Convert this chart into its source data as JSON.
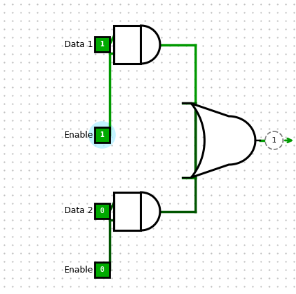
{
  "bg_color": "#ffffff",
  "dot_color": "#bbbbbb",
  "wire_color_top": "#009900",
  "wire_color_bot": "#005500",
  "gate_edge": "#000000",
  "gate_fill": "#ffffff",
  "label_color": "#000000",
  "box_fill": "#00aa00",
  "box_edge": "#000000",
  "text_color_white": "#ffffff",
  "highlight_color": "#aaeeff",
  "labels": {
    "data1": "Data 1",
    "enable1": "Enable",
    "data2": "Data 2",
    "enable2": "Enable"
  },
  "values": {
    "data1": "1",
    "enable1": "1",
    "data2": "0",
    "enable2": "0",
    "output": "1"
  }
}
